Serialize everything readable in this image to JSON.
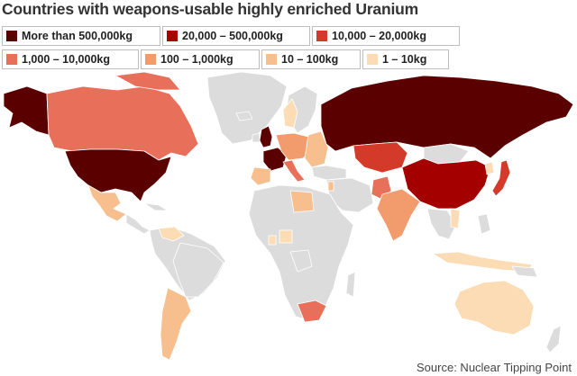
{
  "title": "Countries with weapons-usable highly enriched Uranium",
  "legend": [
    {
      "label": "More than 500,000kg",
      "color": "#5a0000"
    },
    {
      "label": "20,000 – 500,000kg",
      "color": "#a40000"
    },
    {
      "label": "10,000 – 20,000kg",
      "color": "#d43a2a"
    },
    {
      "label": "1,000 – 10,000kg",
      "color": "#e8705a"
    },
    {
      "label": "100 – 1,000kg",
      "color": "#f29c6e"
    },
    {
      "label": "10 – 100kg",
      "color": "#f7bf8e"
    },
    {
      "label": "1 – 10kg",
      "color": "#fbdcb4"
    }
  ],
  "colors": {
    "ocean": "#ffffff",
    "land_none": "#dcdcdc",
    "border": "#ffffff"
  },
  "source": "Source: Nuclear Tipping Point"
}
